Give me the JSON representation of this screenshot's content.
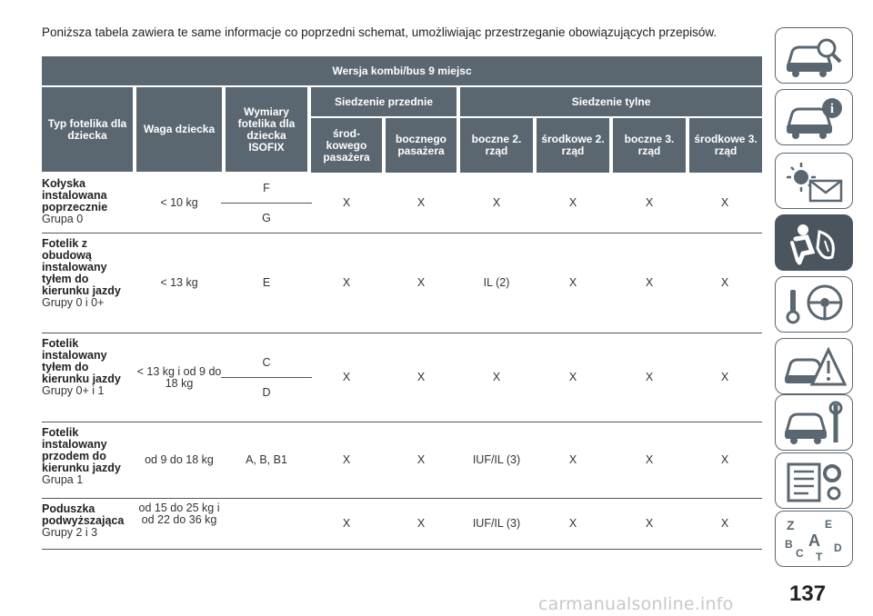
{
  "intro_text": "Poniższa tabela zawiera te same informacje co poprzedni schemat, umożliwiając przestrzeganie obowiązujących przepisów.",
  "table": {
    "title": "Wersja kombi/bus 9 miejsc",
    "headers": {
      "type": "Typ fotelika dla dziecka",
      "weight": "Waga dziecka",
      "isofix": "Wymiary fotelika dla dziecka ISOFIX",
      "front": "Siedzenie przednie",
      "rear": "Siedzenie tylne",
      "seats": [
        "środ-kowego pasażera",
        "bocznego pasażera",
        "boczne 2. rząd",
        "środkowe 2. rząd",
        "boczne 3. rząd",
        "środkowe 3. rząd"
      ]
    },
    "rows": [
      {
        "type_bold": "Kołyska instalowana poprzecznie",
        "type_group": "Grupa 0",
        "weight": "< 10 kg",
        "isofix_top": "F",
        "isofix_bottom": "G",
        "cells": [
          "X",
          "X",
          "X",
          "X",
          "X",
          "X"
        ]
      },
      {
        "type_bold": "Fotelik z obudową instalowany tyłem do kierunku jazdy",
        "type_group": "Grupy 0 i 0+",
        "weight": "< 13 kg",
        "isofix": "E",
        "cells": [
          "X",
          "X",
          "IL (2)",
          "X",
          "X",
          "X"
        ]
      },
      {
        "type_bold": "Fotelik instalowany tyłem do kierunku jazdy",
        "type_group": "Grupy 0+ i 1",
        "weight": "< 13 kg i od 9 do 18 kg",
        "isofix_top": "C",
        "isofix_bottom": "D",
        "cells": [
          "X",
          "X",
          "X",
          "X",
          "X",
          "X"
        ]
      },
      {
        "type_bold": "Fotelik instalowany przodem do kierunku jazdy",
        "type_group": "Grupa 1",
        "weight": "od 9 do 18 kg",
        "isofix": "A, B, B1",
        "cells": [
          "X",
          "X",
          "IUF/IL (3)",
          "X",
          "X",
          "X"
        ]
      },
      {
        "type_bold": "Poduszka podwyższająca",
        "type_group": "Grupy 2 i 3",
        "weight": "od 15 do 25 kg i od 22 do 36 kg",
        "isofix": "",
        "cells": [
          "X",
          "X",
          "IUF/IL (3)",
          "X",
          "X",
          "X"
        ]
      }
    ]
  },
  "sidebar_tabs": [
    {
      "icon": "car-search-icon",
      "active": false
    },
    {
      "icon": "car-info-icon",
      "active": false
    },
    {
      "icon": "warning-lights-icon",
      "active": false
    },
    {
      "icon": "airbag-seat-icon",
      "active": true
    },
    {
      "icon": "steering-key-icon",
      "active": false
    },
    {
      "icon": "car-breakdown-icon",
      "active": false
    },
    {
      "icon": "car-service-icon",
      "active": false
    },
    {
      "icon": "technical-data-icon",
      "active": false
    },
    {
      "icon": "alphabet-index-icon",
      "active": false
    }
  ],
  "page_number": "137",
  "watermark": "carmanualsonline.info"
}
